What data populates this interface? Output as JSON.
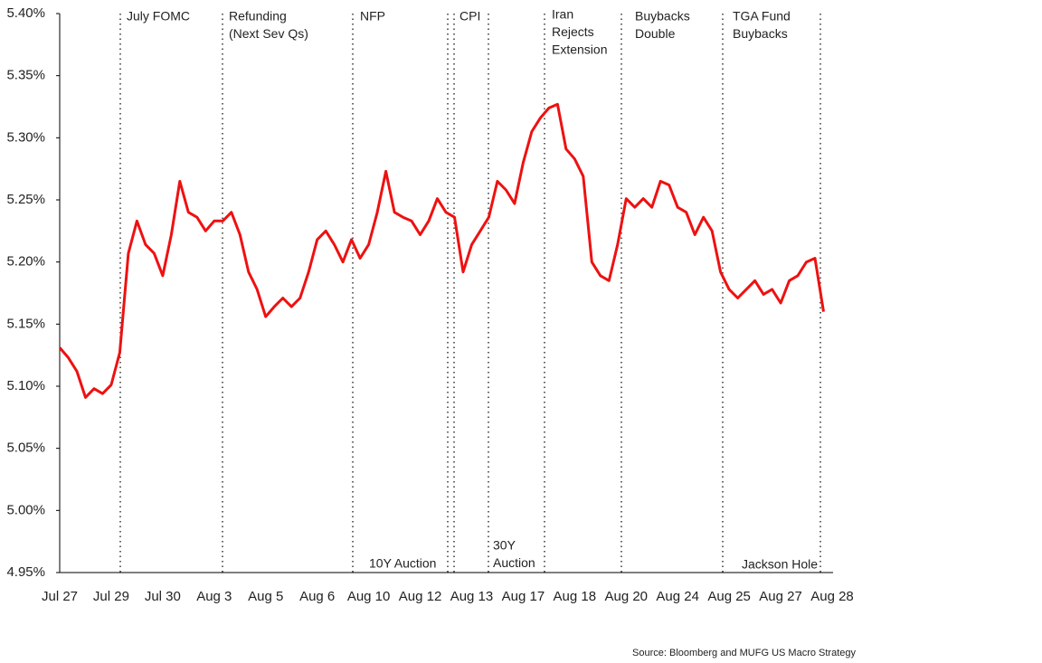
{
  "chart_data": {
    "type": "line",
    "categories": [
      "Jul 27",
      null,
      null,
      null,
      null,
      null,
      "Jul 29",
      null,
      null,
      null,
      null,
      null,
      "Jul 30",
      null,
      null,
      null,
      null,
      null,
      "Aug 3",
      null,
      null,
      null,
      null,
      null,
      "Aug 5",
      null,
      null,
      null,
      null,
      null,
      "Aug 6",
      null,
      null,
      null,
      null,
      null,
      "Aug 10",
      null,
      null,
      null,
      null,
      null,
      "Aug 12",
      null,
      null,
      null,
      null,
      null,
      "Aug 13",
      null,
      null,
      null,
      null,
      null,
      "Aug 17",
      null,
      null,
      null,
      null,
      null,
      "Aug 18",
      null,
      null,
      null,
      null,
      null,
      "Aug 20",
      null,
      null,
      null,
      null,
      null,
      "Aug 24",
      null,
      null,
      null,
      null,
      null,
      "Aug 25",
      null,
      null,
      null,
      null,
      null,
      "Aug 27",
      null,
      null,
      null,
      null,
      null,
      "Aug 28"
    ],
    "series": [
      {
        "color": "#ee1111",
        "values": [
          5.131,
          5.123,
          5.112,
          5.091,
          5.098,
          5.094,
          5.101,
          5.127,
          5.207,
          5.233,
          5.214,
          5.207,
          5.189,
          5.222,
          5.265,
          5.24,
          5.236,
          5.225,
          5.233,
          5.233,
          5.24,
          5.222,
          5.192,
          5.178,
          5.156,
          5.164,
          5.171,
          5.164,
          5.171,
          5.192,
          5.218,
          5.225,
          5.214,
          5.2,
          5.218,
          5.203,
          5.214,
          5.24,
          5.273,
          5.24,
          5.236,
          5.233,
          5.222,
          5.233,
          5.251,
          5.24,
          5.236,
          5.192,
          5.214,
          5.225,
          5.236,
          5.265,
          5.258,
          5.247,
          5.28,
          5.305,
          5.316,
          5.324,
          5.327,
          5.291,
          5.283,
          5.269,
          5.2,
          5.189,
          5.185,
          5.214,
          5.251,
          5.244,
          5.251,
          5.244,
          5.265,
          5.262,
          5.244,
          5.24,
          5.222,
          5.236,
          5.225,
          5.192,
          5.178,
          5.171,
          5.178,
          5.185,
          5.174,
          5.178,
          5.167,
          5.185,
          5.189,
          5.2,
          5.203,
          5.16,
          null
        ]
      }
    ],
    "ylim": [
      4.95,
      5.4
    ],
    "yticks": [
      {
        "value": 4.95,
        "label": "4.95%"
      },
      {
        "value": 5.0,
        "label": "5.00%"
      },
      {
        "value": 5.05,
        "label": "5.05%"
      },
      {
        "value": 5.1,
        "label": "5.10%"
      },
      {
        "value": 5.15,
        "label": "5.15%"
      },
      {
        "value": 5.2,
        "label": "5.20%"
      },
      {
        "value": 5.25,
        "label": "5.25%"
      },
      {
        "value": 5.3,
        "label": "5.30%"
      },
      {
        "value": 5.35,
        "label": "5.35%"
      },
      {
        "value": 5.4,
        "label": "5.40%"
      }
    ],
    "grid": false,
    "annotations": [
      [
        "July FOMC"
      ],
      [
        "Refunding",
        "(Next Sev Qs)"
      ],
      [
        "NFP"
      ],
      [
        "CPI"
      ],
      [
        "Iran",
        "Rejects",
        "Extension"
      ],
      [
        "Buybacks",
        "Double"
      ],
      [
        "TGA Fund",
        "Buybacks"
      ],
      [
        "10Y Auction"
      ],
      [
        "30Y",
        "Auction"
      ],
      [
        "Jackson Hole"
      ]
    ],
    "source": "Source: Bloomberg and MUFG US Macro Strategy"
  }
}
